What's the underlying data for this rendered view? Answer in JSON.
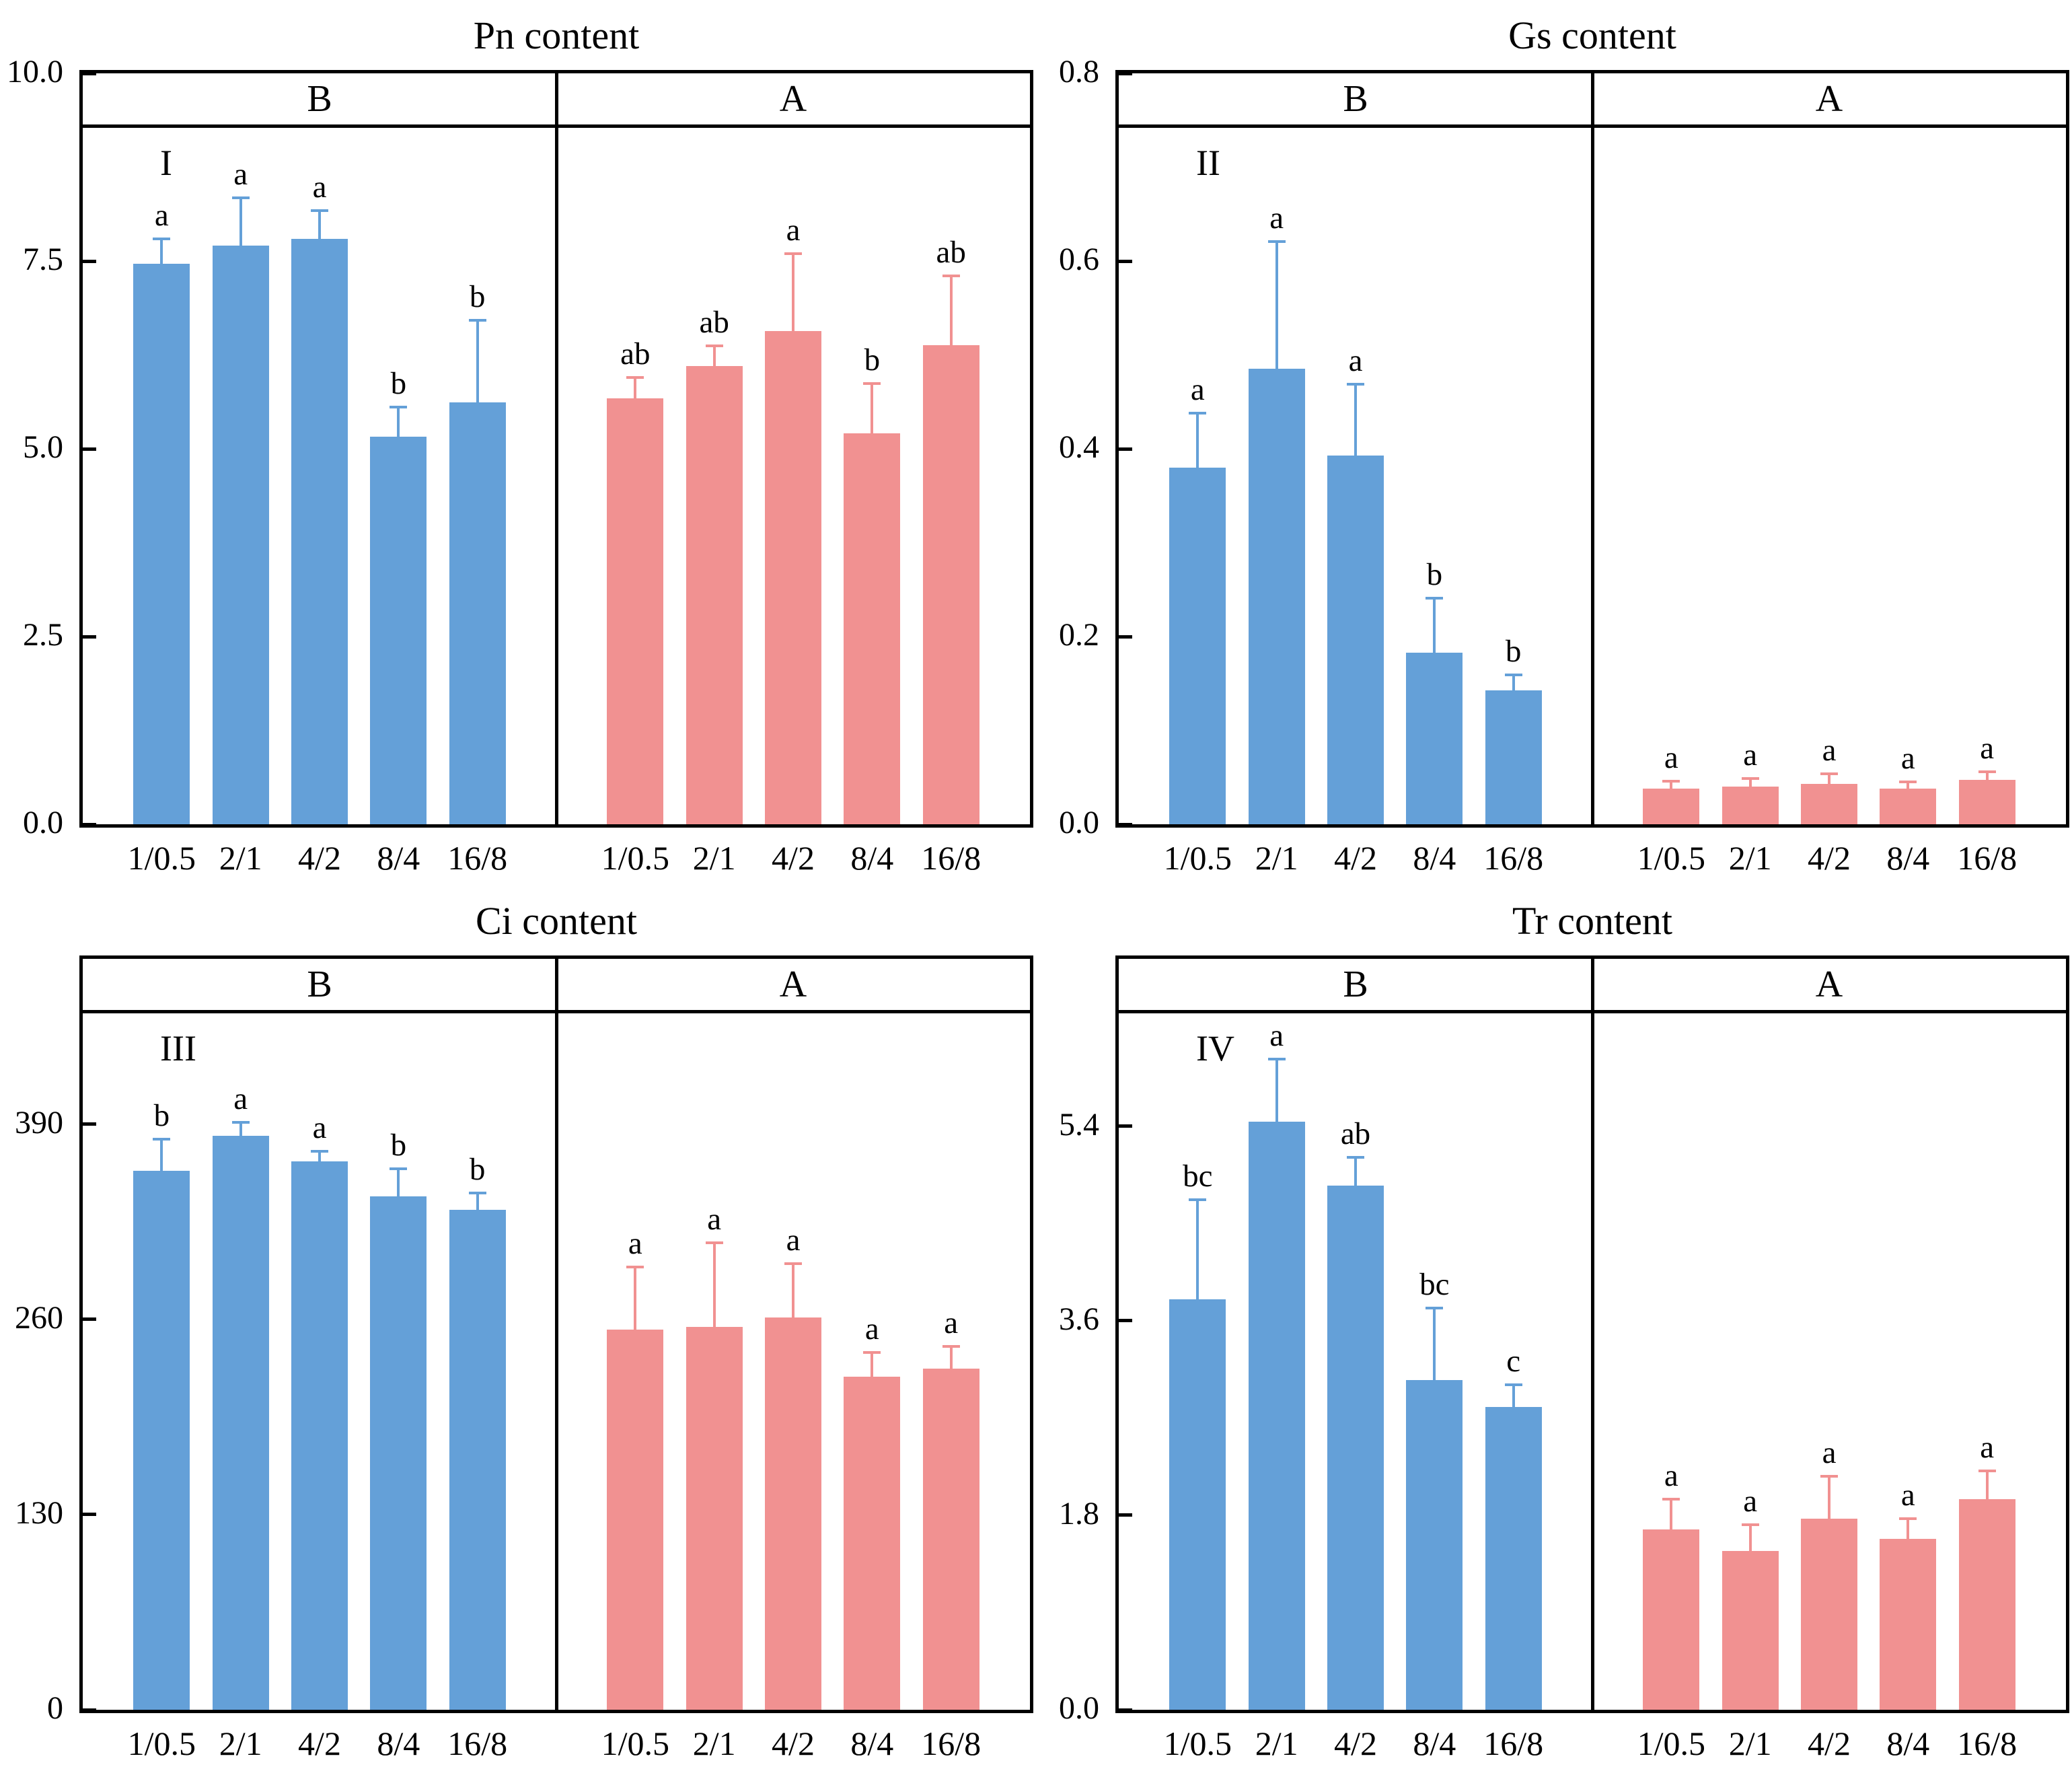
{
  "colors": {
    "group_b_fill": "#64A0D8",
    "group_a_fill": "#F19191",
    "axis": "#000000",
    "background": "#FFFFFF",
    "letter_text": "#000000"
  },
  "chart_data": [
    {
      "type": "bar",
      "panel_index": "I",
      "title": "Pn content",
      "group_headers": [
        "B",
        "A"
      ],
      "categories": [
        "1/0.5",
        "2/1",
        "4/2",
        "8/4",
        "16/8"
      ],
      "ylim": [
        0,
        10
      ],
      "grid": false,
      "yticks": [
        {
          "value": 10,
          "label": "10.0"
        },
        {
          "value": 7.5,
          "label": "7.5"
        },
        {
          "value": 5,
          "label": "5.0"
        },
        {
          "value": 2.5,
          "label": "2.5"
        },
        {
          "value": 0,
          "label": "0.0"
        }
      ],
      "series": [
        {
          "name": "B",
          "color": "#64A0D8",
          "values": [
            7.46,
            7.71,
            7.8,
            5.16,
            5.62
          ],
          "err_top": [
            7.8,
            8.34,
            8.17,
            5.56,
            6.71
          ],
          "sig_letters": [
            "a",
            "a",
            "a",
            "b",
            "b"
          ]
        },
        {
          "name": "A",
          "color": "#F19191",
          "values": [
            5.67,
            6.1,
            6.57,
            5.21,
            6.38
          ],
          "err_top": [
            5.95,
            6.37,
            7.6,
            5.87,
            7.3
          ],
          "sig_letters": [
            "ab",
            "ab",
            "a",
            "b",
            "ab"
          ]
        }
      ]
    },
    {
      "type": "bar",
      "panel_index": "II",
      "title": "Gs content",
      "group_headers": [
        "B",
        "A"
      ],
      "categories": [
        "1/0.5",
        "2/1",
        "4/2",
        "8/4",
        "16/8"
      ],
      "ylim": [
        0,
        0.8
      ],
      "grid": false,
      "yticks": [
        {
          "value": 0.8,
          "label": "0.8"
        },
        {
          "value": 0.6,
          "label": "0.6"
        },
        {
          "value": 0.4,
          "label": "0.4"
        },
        {
          "value": 0.2,
          "label": "0.2"
        },
        {
          "value": 0,
          "label": "0.0"
        }
      ],
      "series": [
        {
          "name": "B",
          "color": "#64A0D8",
          "values": [
            0.38,
            0.485,
            0.393,
            0.183,
            0.143
          ],
          "err_top": [
            0.438,
            0.621,
            0.469,
            0.241,
            0.159
          ],
          "sig_letters": [
            "a",
            "a",
            "a",
            "b",
            "b"
          ]
        },
        {
          "name": "A",
          "color": "#F19191",
          "values": [
            0.038,
            0.04,
            0.043,
            0.038,
            0.047
          ],
          "err_top": [
            0.046,
            0.049,
            0.054,
            0.045,
            0.056
          ],
          "sig_letters": [
            "a",
            "a",
            "a",
            "a",
            "a"
          ]
        }
      ]
    },
    {
      "type": "bar",
      "panel_index": "III",
      "title": "Ci content",
      "group_headers": [
        "B",
        "A"
      ],
      "categories": [
        "1/0.5",
        "2/1",
        "4/2",
        "8/4",
        "16/8"
      ],
      "ylim": [
        0,
        500
      ],
      "grid": false,
      "yticks": [
        {
          "value": 390,
          "label": "390"
        },
        {
          "value": 260,
          "label": "260"
        },
        {
          "value": 130,
          "label": "130"
        },
        {
          "value": 0,
          "label": "0"
        }
      ],
      "series": [
        {
          "name": "B",
          "color": "#64A0D8",
          "values": [
            359,
            382,
            365,
            342,
            333
          ],
          "err_top": [
            380,
            391,
            372,
            360,
            344
          ],
          "sig_letters": [
            "b",
            "a",
            "a",
            "b",
            "b"
          ]
        },
        {
          "name": "A",
          "color": "#F19191",
          "values": [
            253,
            255,
            261,
            222,
            227
          ],
          "err_top": [
            295,
            311,
            297,
            238,
            242
          ],
          "sig_letters": [
            "a",
            "a",
            "a",
            "a",
            "a"
          ]
        }
      ]
    },
    {
      "type": "bar",
      "panel_index": "IV",
      "title": "Tr content",
      "group_headers": [
        "B",
        "A"
      ],
      "categories": [
        "1/0.5",
        "2/1",
        "4/2",
        "8/4",
        "16/8"
      ],
      "ylim": [
        0,
        6.95
      ],
      "grid": false,
      "yticks": [
        {
          "value": 5.4,
          "label": "5.4"
        },
        {
          "value": 3.6,
          "label": "3.6"
        },
        {
          "value": 1.8,
          "label": "1.8"
        },
        {
          "value": 0,
          "label": "0.0"
        }
      ],
      "series": [
        {
          "name": "B",
          "color": "#64A0D8",
          "values": [
            3.8,
            5.44,
            4.85,
            3.05,
            2.8
          ],
          "err_top": [
            4.72,
            6.02,
            5.11,
            3.72,
            3.01
          ],
          "sig_letters": [
            "bc",
            "a",
            "ab",
            "bc",
            "c"
          ]
        },
        {
          "name": "A",
          "color": "#F19191",
          "values": [
            1.67,
            1.47,
            1.77,
            1.58,
            1.95
          ],
          "err_top": [
            1.95,
            1.71,
            2.16,
            1.77,
            2.21
          ],
          "sig_letters": [
            "a",
            "a",
            "a",
            "a",
            "a"
          ]
        }
      ]
    }
  ]
}
